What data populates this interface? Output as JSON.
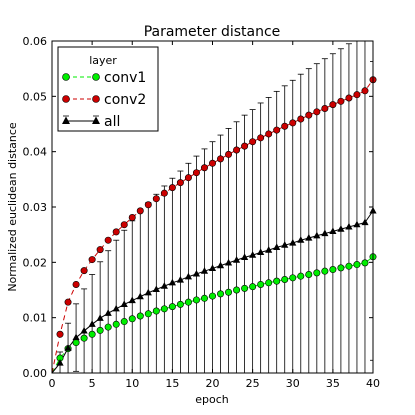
{
  "chart_data": {
    "type": "line",
    "title": "Parameter distance",
    "xlabel": "epoch",
    "ylabel": "Normalized euclidean distance",
    "xlim": [
      0,
      40
    ],
    "ylim": [
      0,
      0.06
    ],
    "xticks": [
      0,
      5,
      10,
      15,
      20,
      25,
      30,
      35,
      40
    ],
    "yticks": [
      0.0,
      0.01,
      0.02,
      0.03,
      0.04,
      0.05,
      0.06
    ],
    "xtick_labels": [
      "0",
      "5",
      "10",
      "15",
      "20",
      "25",
      "30",
      "35",
      "40"
    ],
    "ytick_labels": [
      "0.00",
      "0.01",
      "0.02",
      "0.03",
      "0.04",
      "0.05",
      "0.06"
    ],
    "grid": false,
    "legend": {
      "title": "layer",
      "placement": "top-left"
    },
    "x": [
      0,
      1,
      2,
      3,
      4,
      5,
      6,
      7,
      8,
      9,
      10,
      11,
      12,
      13,
      14,
      15,
      16,
      17,
      18,
      19,
      20,
      21,
      22,
      23,
      24,
      25,
      26,
      27,
      28,
      29,
      30,
      31,
      32,
      33,
      34,
      35,
      36,
      37,
      38,
      39,
      40
    ],
    "series": [
      {
        "name": "conv1",
        "color": "#00ee00",
        "linestyle": "dashed",
        "marker": "circle",
        "values": [
          0.0,
          0.0027,
          0.0044,
          0.0055,
          0.0063,
          0.007,
          0.0077,
          0.0083,
          0.0088,
          0.0093,
          0.0098,
          0.0103,
          0.0107,
          0.0112,
          0.0116,
          0.012,
          0.0124,
          0.0128,
          0.0132,
          0.0135,
          0.0139,
          0.0143,
          0.0146,
          0.015,
          0.0153,
          0.0156,
          0.016,
          0.0163,
          0.0166,
          0.0169,
          0.0172,
          0.0175,
          0.0178,
          0.0181,
          0.0184,
          0.0187,
          0.019,
          0.0193,
          0.0196,
          0.0199,
          0.021
        ]
      },
      {
        "name": "conv2",
        "color": "#cc0000",
        "linestyle": "dashed",
        "marker": "circle",
        "values": [
          0.0,
          0.007,
          0.0128,
          0.016,
          0.0185,
          0.0205,
          0.0223,
          0.024,
          0.0255,
          0.0268,
          0.0281,
          0.0293,
          0.0304,
          0.0315,
          0.0325,
          0.0335,
          0.0344,
          0.0353,
          0.0362,
          0.0371,
          0.0379,
          0.0387,
          0.0395,
          0.0403,
          0.041,
          0.0418,
          0.0425,
          0.0432,
          0.0439,
          0.0446,
          0.0452,
          0.0459,
          0.0466,
          0.0472,
          0.0478,
          0.0485,
          0.0491,
          0.0497,
          0.0503,
          0.051,
          0.053
        ]
      },
      {
        "name": "all",
        "color": "#000000",
        "linestyle": "solid",
        "marker": "triangle",
        "values": [
          0.0,
          0.0018,
          0.0045,
          0.0064,
          0.0076,
          0.0088,
          0.0099,
          0.0108,
          0.0116,
          0.0124,
          0.0131,
          0.0138,
          0.0145,
          0.0151,
          0.0157,
          0.0163,
          0.0168,
          0.0174,
          0.0179,
          0.0184,
          0.0189,
          0.0194,
          0.0199,
          0.0204,
          0.0209,
          0.0213,
          0.0218,
          0.0222,
          0.0227,
          0.0231,
          0.0235,
          0.024,
          0.0244,
          0.0248,
          0.0252,
          0.0256,
          0.026,
          0.0264,
          0.0268,
          0.0272,
          0.0293
        ],
        "error": [
          0.0,
          0.002,
          0.0045,
          0.0061,
          0.0076,
          0.009,
          0.0102,
          0.0113,
          0.0124,
          0.0134,
          0.0144,
          0.0154,
          0.0163,
          0.0172,
          0.0181,
          0.0189,
          0.0197,
          0.0205,
          0.0213,
          0.0221,
          0.0229,
          0.0236,
          0.0243,
          0.025,
          0.0257,
          0.0263,
          0.027,
          0.0276,
          0.0282,
          0.0288,
          0.0294,
          0.03,
          0.0306,
          0.0311,
          0.0316,
          0.0321,
          0.0326,
          0.0331,
          0.0336,
          0.0341,
          0.027
        ]
      }
    ]
  }
}
